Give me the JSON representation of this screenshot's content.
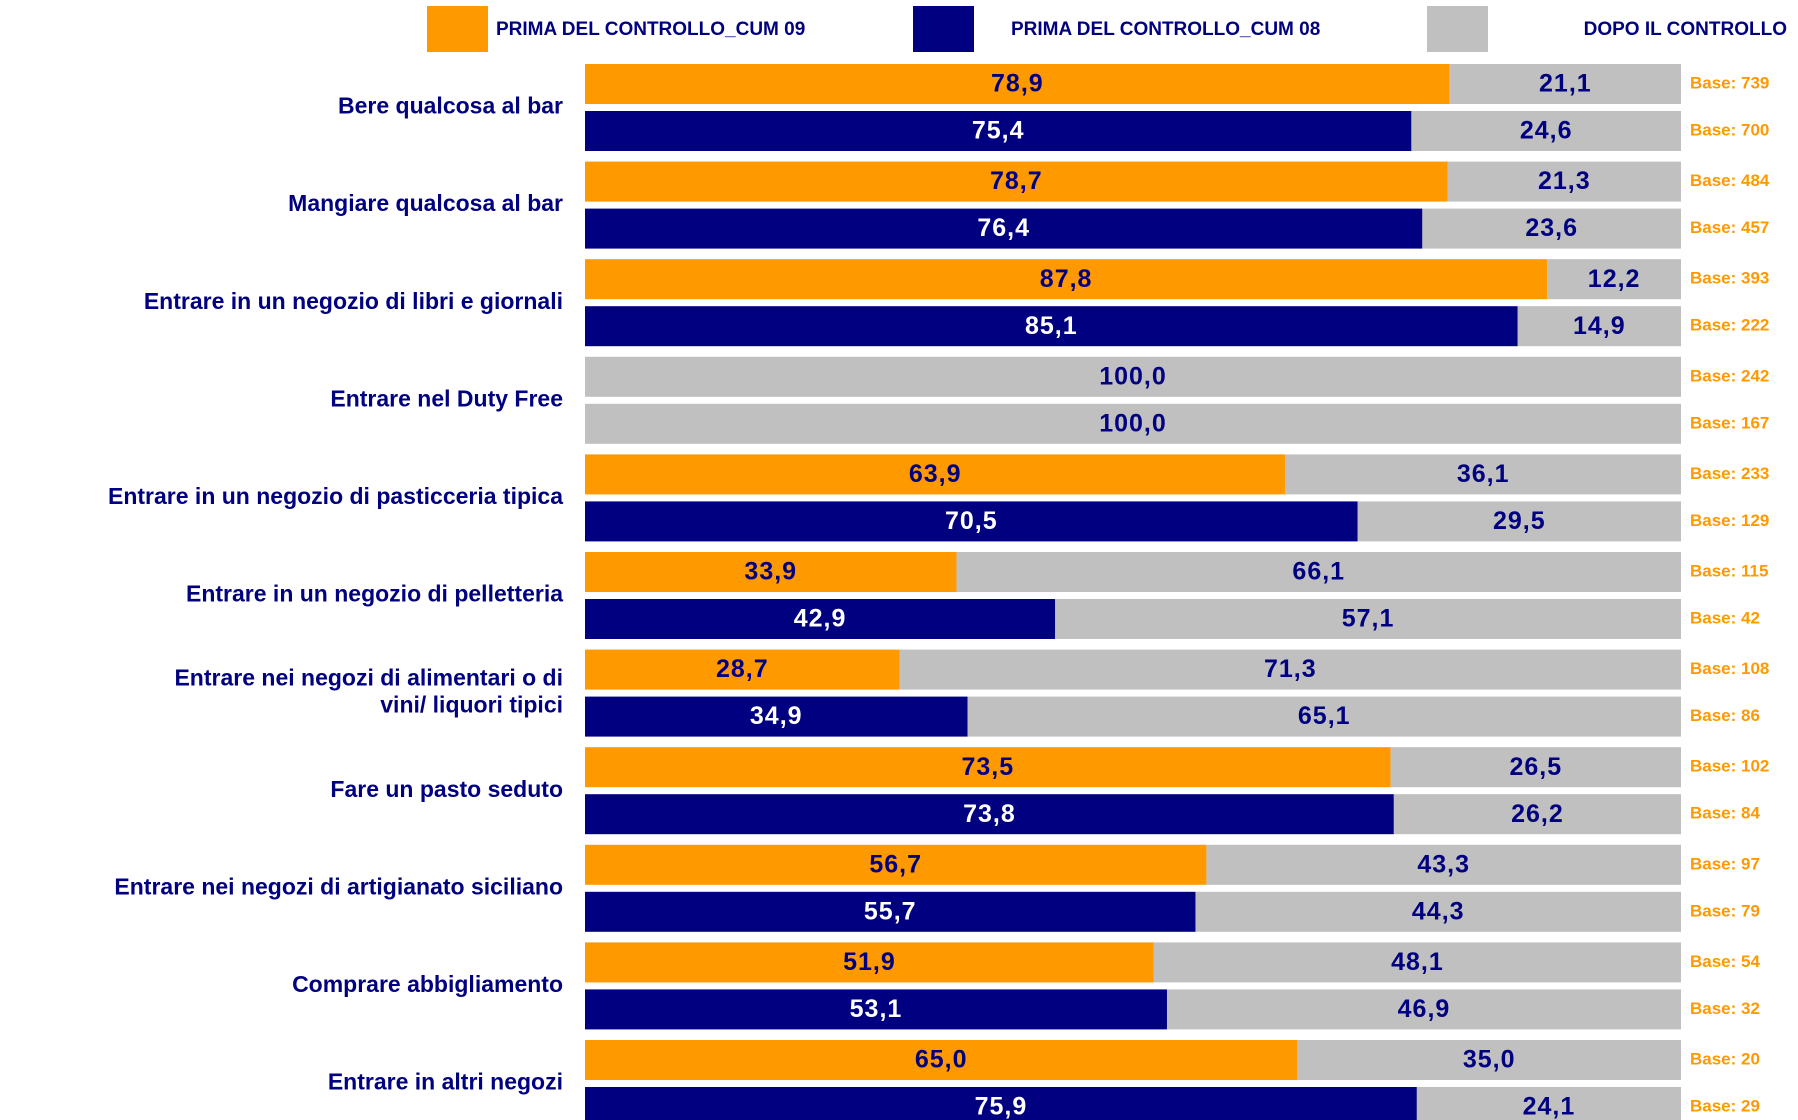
{
  "chart_data": {
    "type": "stacked-bar-100",
    "series": [
      {
        "name": "PRIMA DEL CONTROLLO_CUM 09",
        "color": "#ff9900"
      },
      {
        "name": "PRIMA DEL CONTROLLO_CUM 08",
        "color": "#000080"
      },
      {
        "name": "DOPO IL CONTROLLO",
        "color": "#c0c0c0"
      }
    ],
    "xlim": [
      0,
      100
    ],
    "groups": [
      {
        "label": [
          "Bere qualcosa al bar"
        ],
        "cum_09": {
          "values": [
            78.9,
            21.1
          ],
          "value_labels": [
            "78,9",
            "21,1"
          ],
          "base": "Base: 739"
        },
        "cum_08": {
          "values": [
            75.4,
            24.6
          ],
          "value_labels": [
            "75,4",
            "24,6"
          ],
          "base": "Base: 700"
        }
      },
      {
        "label": [
          "Mangiare qualcosa al bar"
        ],
        "cum_09": {
          "values": [
            78.7,
            21.3
          ],
          "value_labels": [
            "78,7",
            "21,3"
          ],
          "base": "Base: 484"
        },
        "cum_08": {
          "values": [
            76.4,
            23.6
          ],
          "value_labels": [
            "76,4",
            "23,6"
          ],
          "base": "Base: 457"
        }
      },
      {
        "label": [
          "Entrare in un negozio di libri e giornali"
        ],
        "cum_09": {
          "values": [
            87.8,
            12.2
          ],
          "value_labels": [
            "87,8",
            "12,2"
          ],
          "base": "Base: 393"
        },
        "cum_08": {
          "values": [
            85.1,
            14.9
          ],
          "value_labels": [
            "85,1",
            "14,9"
          ],
          "base": "Base: 222"
        }
      },
      {
        "label": [
          "Entrare nel Duty Free"
        ],
        "cum_09": {
          "values": [
            0,
            100
          ],
          "value_labels": [
            null,
            "100,0"
          ],
          "base": "Base: 242"
        },
        "cum_08": {
          "values": [
            0,
            100
          ],
          "value_labels": [
            null,
            "100,0"
          ],
          "base": "Base: 167"
        }
      },
      {
        "label": [
          "Entrare in un negozio di pasticceria tipica"
        ],
        "cum_09": {
          "values": [
            63.9,
            36.1
          ],
          "value_labels": [
            "63,9",
            "36,1"
          ],
          "base": "Base: 233"
        },
        "cum_08": {
          "values": [
            70.5,
            29.5
          ],
          "value_labels": [
            "70,5",
            "29,5"
          ],
          "base": "Base: 129"
        }
      },
      {
        "label": [
          "Entrare in un negozio di pelletteria"
        ],
        "cum_09": {
          "values": [
            33.9,
            66.1
          ],
          "value_labels": [
            "33,9",
            "66,1"
          ],
          "base": "Base: 115"
        },
        "cum_08": {
          "values": [
            42.9,
            57.1
          ],
          "value_labels": [
            "42,9",
            "57,1"
          ],
          "base": "Base: 42"
        }
      },
      {
        "label": [
          "Entrare nei negozi di alimentari o di",
          "vini/ liquori tipici"
        ],
        "cum_09": {
          "values": [
            28.7,
            71.3
          ],
          "value_labels": [
            "28,7",
            "71,3"
          ],
          "base": "Base: 108"
        },
        "cum_08": {
          "values": [
            34.9,
            65.1
          ],
          "value_labels": [
            "34,9",
            "65,1"
          ],
          "base": "Base: 86"
        }
      },
      {
        "label": [
          "Fare un pasto seduto"
        ],
        "cum_09": {
          "values": [
            73.5,
            26.5
          ],
          "value_labels": [
            "73,5",
            "26,5"
          ],
          "base": "Base: 102"
        },
        "cum_08": {
          "values": [
            73.8,
            26.2
          ],
          "value_labels": [
            "73,8",
            "26,2"
          ],
          "base": "Base: 84"
        }
      },
      {
        "label": [
          "Entrare nei negozi di artigianato siciliano"
        ],
        "cum_09": {
          "values": [
            56.7,
            43.3
          ],
          "value_labels": [
            "56,7",
            "43,3"
          ],
          "base": "Base: 97"
        },
        "cum_08": {
          "values": [
            55.7,
            44.3
          ],
          "value_labels": [
            "55,7",
            "44,3"
          ],
          "base": "Base: 79"
        }
      },
      {
        "label": [
          "Comprare abbigliamento"
        ],
        "cum_09": {
          "values": [
            51.9,
            48.1
          ],
          "value_labels": [
            "51,9",
            "48,1"
          ],
          "base": "Base: 54"
        },
        "cum_08": {
          "values": [
            53.1,
            46.9
          ],
          "value_labels": [
            "53,1",
            "46,9"
          ],
          "base": "Base: 32"
        }
      },
      {
        "label": [
          "Entrare in altri negozi"
        ],
        "cum_09": {
          "values": [
            65.0,
            35.0
          ],
          "value_labels": [
            "65,0",
            "35,0"
          ],
          "base": "Base: 20"
        },
        "cum_08": {
          "values": [
            75.9,
            24.1
          ],
          "value_labels": [
            "75,9",
            "24,1"
          ],
          "base": "Base: 29"
        }
      }
    ]
  }
}
